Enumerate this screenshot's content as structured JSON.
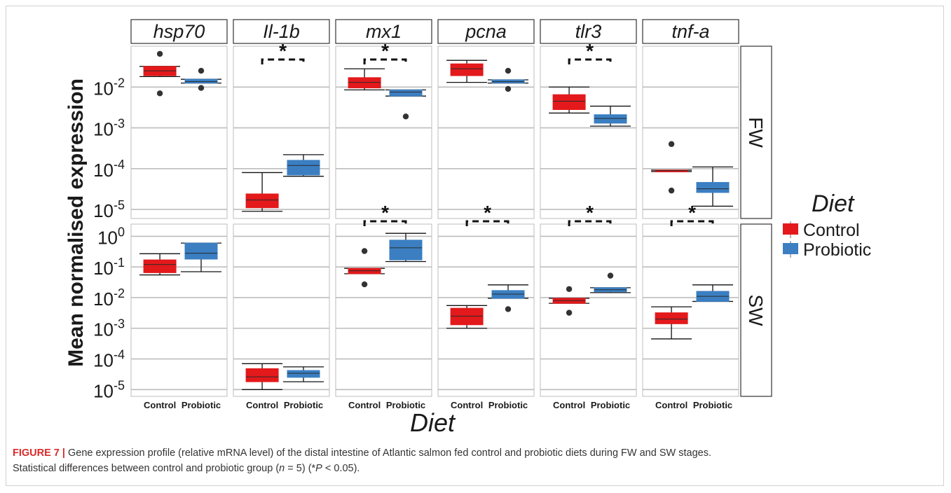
{
  "chart_data": {
    "type": "boxplot",
    "xlabel": "Diet",
    "ylabel": "Mean normalised expression",
    "yscale": "log10",
    "ylim": [
      6e-06,
      5
    ],
    "y_ticks": [
      {
        "value": 1e-05,
        "base": "10",
        "exp": "-5"
      },
      {
        "value": 0.0001,
        "base": "10",
        "exp": "-4"
      },
      {
        "value": 0.001,
        "base": "10",
        "exp": "-3"
      },
      {
        "value": 0.01,
        "base": "10",
        "exp": "-2"
      },
      {
        "value": 0.1,
        "base": "10",
        "exp": "-1"
      },
      {
        "value": 1,
        "base": "10",
        "exp": "0"
      }
    ],
    "categories": [
      "Control",
      "Probiotic"
    ],
    "genes": [
      "hsp70",
      "Il-1b",
      "mx1",
      "pcna",
      "tlr3",
      "tnf-a"
    ],
    "rows": [
      {
        "label": "FW",
        "ylim": [
          6e-06,
          0.1
        ],
        "tick_exps": [
          -5,
          -4,
          -3,
          -2
        ],
        "panels": [
          {
            "gene": "hsp70",
            "signif": false,
            "boxes": {
              "Control": {
                "min": 0.018,
                "q1": 0.019,
                "median": 0.025,
                "q3": 0.032,
                "max": 0.032,
                "outliers": [
                  0.065,
                  0.007
                ]
              },
              "Probiotic": {
                "min": 0.0125,
                "q1": 0.0125,
                "median": 0.0135,
                "q3": 0.0155,
                "max": 0.0155,
                "outliers": [
                  0.025,
                  0.0095
                ]
              }
            }
          },
          {
            "gene": "Il-1b",
            "signif": true,
            "boxes": {
              "Control": {
                "min": 9e-06,
                "q1": 1.1e-05,
                "median": 1.7e-05,
                "q3": 2.4e-05,
                "max": 8e-05,
                "outliers": []
              },
              "Probiotic": {
                "min": 6.5e-05,
                "q1": 7e-05,
                "median": 0.00012,
                "q3": 0.00016,
                "max": 0.00022,
                "outliers": []
              }
            }
          },
          {
            "gene": "mx1",
            "signif": true,
            "boxes": {
              "Control": {
                "min": 0.0085,
                "q1": 0.0095,
                "median": 0.013,
                "q3": 0.017,
                "max": 0.028,
                "outliers": []
              },
              "Probiotic": {
                "min": 0.006,
                "q1": 0.006,
                "median": 0.0075,
                "q3": 0.0085,
                "max": 0.0085,
                "outliers": [
                  0.0019
                ]
              }
            }
          },
          {
            "gene": "pcna",
            "signif": false,
            "boxes": {
              "Control": {
                "min": 0.013,
                "q1": 0.019,
                "median": 0.028,
                "q3": 0.037,
                "max": 0.045,
                "outliers": []
              },
              "Probiotic": {
                "min": 0.0125,
                "q1": 0.0125,
                "median": 0.0135,
                "q3": 0.015,
                "max": 0.015,
                "outliers": [
                  0.025,
                  0.009
                ]
              }
            }
          },
          {
            "gene": "tlr3",
            "signif": true,
            "boxes": {
              "Control": {
                "min": 0.0023,
                "q1": 0.0028,
                "median": 0.0045,
                "q3": 0.0065,
                "max": 0.01,
                "outliers": []
              },
              "Probiotic": {
                "min": 0.0011,
                "q1": 0.0013,
                "median": 0.0017,
                "q3": 0.0021,
                "max": 0.0034,
                "outliers": []
              }
            }
          },
          {
            "gene": "tnf-a",
            "signif": false,
            "boxes": {
              "Control": {
                "min": 8.5e-05,
                "q1": 8.6e-05,
                "median": 8.9e-05,
                "q3": 9.2e-05,
                "max": 9.2e-05,
                "outliers": [
                  0.0004,
                  2.9e-05
                ]
              },
              "Probiotic": {
                "min": 1.2e-05,
                "q1": 2.6e-05,
                "median": 3.2e-05,
                "q3": 4.6e-05,
                "max": 0.00011,
                "outliers": []
              }
            }
          }
        ]
      },
      {
        "label": "SW",
        "ylim": [
          6e-06,
          2.5
        ],
        "tick_exps": [
          -5,
          -4,
          -3,
          -2,
          -1,
          0
        ],
        "panels": [
          {
            "gene": "hsp70",
            "signif": false,
            "boxes": {
              "Control": {
                "min": 0.055,
                "q1": 0.065,
                "median": 0.12,
                "q3": 0.17,
                "max": 0.27,
                "outliers": []
              },
              "Probiotic": {
                "min": 0.07,
                "q1": 0.18,
                "median": 0.28,
                "q3": 0.6,
                "max": 0.6,
                "outliers": []
              }
            }
          },
          {
            "gene": "Il-1b",
            "signif": false,
            "boxes": {
              "Control": {
                "min": 1e-05,
                "q1": 1.8e-05,
                "median": 2.6e-05,
                "q3": 4.8e-05,
                "max": 7e-05,
                "outliers": []
              },
              "Probiotic": {
                "min": 1.8e-05,
                "q1": 2.5e-05,
                "median": 3.4e-05,
                "q3": 4.2e-05,
                "max": 5.5e-05,
                "outliers": []
              }
            }
          },
          {
            "gene": "mx1",
            "signif": true,
            "boxes": {
              "Control": {
                "min": 0.06,
                "q1": 0.06,
                "median": 0.075,
                "q3": 0.09,
                "max": 0.09,
                "outliers": [
                  0.33,
                  0.027
                ]
              },
              "Probiotic": {
                "min": 0.15,
                "q1": 0.17,
                "median": 0.42,
                "q3": 0.75,
                "max": 1.25,
                "outliers": []
              }
            }
          },
          {
            "gene": "pcna",
            "signif": true,
            "boxes": {
              "Control": {
                "min": 0.001,
                "q1": 0.0013,
                "median": 0.0025,
                "q3": 0.0045,
                "max": 0.0055,
                "outliers": []
              },
              "Probiotic": {
                "min": 0.0095,
                "q1": 0.0095,
                "median": 0.013,
                "q3": 0.017,
                "max": 0.026,
                "outliers": [
                  0.0042
                ]
              }
            }
          },
          {
            "gene": "tlr3",
            "signif": true,
            "boxes": {
              "Control": {
                "min": 0.0065,
                "q1": 0.0065,
                "median": 0.008,
                "q3": 0.0095,
                "max": 0.0095,
                "outliers": [
                  0.019,
                  0.0032
                ]
              },
              "Probiotic": {
                "min": 0.0145,
                "q1": 0.0155,
                "median": 0.018,
                "q3": 0.021,
                "max": 0.021,
                "outliers": [
                  0.052
                ]
              }
            }
          },
          {
            "gene": "tnf-a",
            "signif": true,
            "boxes": {
              "Control": {
                "min": 0.00045,
                "q1": 0.0014,
                "median": 0.002,
                "q3": 0.0032,
                "max": 0.005,
                "outliers": []
              },
              "Probiotic": {
                "min": 0.0075,
                "q1": 0.0075,
                "median": 0.011,
                "q3": 0.016,
                "max": 0.026,
                "outliers": []
              }
            }
          }
        ]
      }
    ],
    "signif_symbol": "*",
    "legend": {
      "title": "Diet",
      "position": "right",
      "entries": [
        {
          "label": "Control",
          "color": "#e3191b"
        },
        {
          "label": "Probiotic",
          "color": "#3b7fc2"
        }
      ]
    },
    "colors": {
      "Control": "#e3191b",
      "Probiotic": "#3b7fc2"
    },
    "grid": true
  },
  "caption": {
    "label": "FIGURE 7 |",
    "line1": " Gene expression profile (relative mRNA level) of the distal intestine of Atlantic salmon fed control and probiotic diets during FW and SW stages.",
    "line2a": "Statistical differences between control and probiotic group (",
    "n_var": "n",
    "line2b": " = 5) (*",
    "p_var": "P",
    "line2c": " < 0.05)."
  }
}
